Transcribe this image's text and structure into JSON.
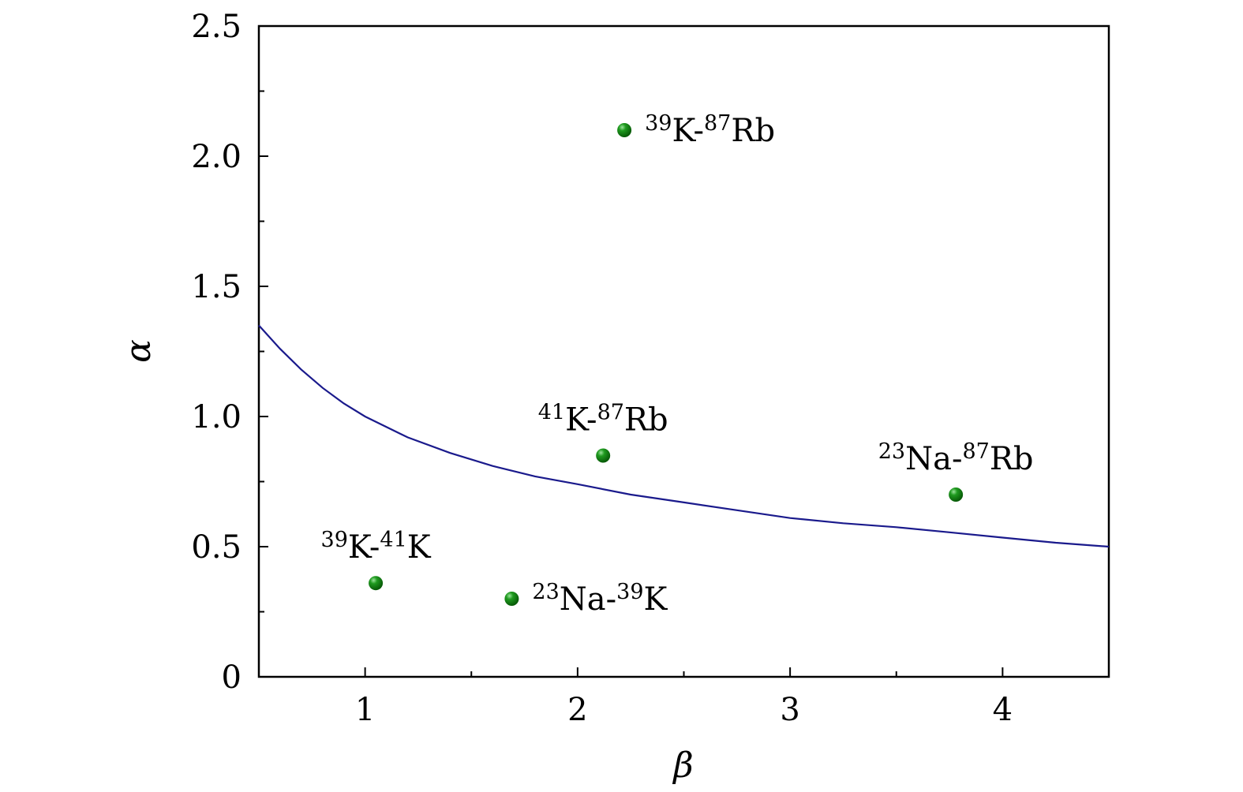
{
  "chart_data": {
    "type": "scatter",
    "title": "",
    "xlabel": "β",
    "ylabel": "α",
    "xlim": [
      0.5,
      4.5
    ],
    "ylim": [
      0,
      2.5
    ],
    "x_ticks": [
      "1",
      "2",
      "3",
      "4"
    ],
    "y_ticks": [
      "0",
      "0.5",
      "1.0",
      "1.5",
      "2.0",
      "2.5"
    ],
    "grid": false,
    "legend": "none",
    "points": [
      {
        "x": 2.22,
        "y": 2.1,
        "mass1": "39",
        "el1": "K",
        "mass2": "87",
        "el2": "Rb",
        "label_pos": "right"
      },
      {
        "x": 2.12,
        "y": 0.85,
        "mass1": "41",
        "el1": "K",
        "mass2": "87",
        "el2": "Rb",
        "label_pos": "above"
      },
      {
        "x": 3.78,
        "y": 0.7,
        "mass1": "23",
        "el1": "Na",
        "mass2": "87",
        "el2": "Rb",
        "label_pos": "above"
      },
      {
        "x": 1.05,
        "y": 0.36,
        "mass1": "39",
        "el1": "K",
        "mass2": "41",
        "el2": "K",
        "label_pos": "above"
      },
      {
        "x": 1.69,
        "y": 0.3,
        "mass1": "23",
        "el1": "Na",
        "mass2": "39",
        "el2": "K",
        "label_pos": "right"
      }
    ],
    "curve": {
      "x": [
        0.5,
        0.6,
        0.7,
        0.8,
        0.9,
        1.0,
        1.2,
        1.4,
        1.6,
        1.8,
        2.0,
        2.25,
        2.5,
        2.75,
        3.0,
        3.25,
        3.5,
        3.75,
        4.0,
        4.25,
        4.5
      ],
      "y": [
        1.35,
        1.26,
        1.18,
        1.11,
        1.05,
        1.0,
        0.92,
        0.86,
        0.81,
        0.77,
        0.74,
        0.7,
        0.67,
        0.64,
        0.61,
        0.59,
        0.575,
        0.555,
        0.535,
        0.515,
        0.5
      ]
    },
    "colors": {
      "curve": "#1a1a8c",
      "points": "#0f7a0f",
      "axes": "#000000"
    }
  }
}
